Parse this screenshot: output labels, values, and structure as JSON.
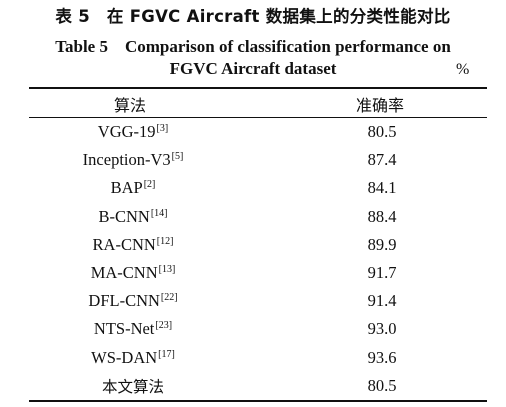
{
  "title_cn": "表 5　在 FGVC Aircraft 数据集上的分类性能对比",
  "title_en_line1": "Table 5　Comparison of classification performance on",
  "title_en_line2": "FGVC Aircraft dataset",
  "unit": "%",
  "headers": {
    "algorithm": "算法",
    "accuracy": "准确率"
  },
  "rows": [
    {
      "name": "VGG-19",
      "ref": "[3]",
      "acc": "80.5"
    },
    {
      "name": "Inception-V3",
      "ref": "[5]",
      "acc": "87.4"
    },
    {
      "name": "BAP",
      "ref": "[2]",
      "acc": "84.1"
    },
    {
      "name": "B-CNN",
      "ref": "[14]",
      "acc": "88.4"
    },
    {
      "name": "RA-CNN",
      "ref": "[12]",
      "acc": "89.9"
    },
    {
      "name": "MA-CNN",
      "ref": "[13]",
      "acc": "91.7"
    },
    {
      "name": "DFL-CNN",
      "ref": "[22]",
      "acc": "91.4"
    },
    {
      "name": "NTS-Net",
      "ref": "[23]",
      "acc": "93.0"
    },
    {
      "name": "WS-DAN",
      "ref": "[17]",
      "acc": "93.6"
    },
    {
      "name": "本文算法",
      "ref": "",
      "acc": "80.5"
    }
  ]
}
